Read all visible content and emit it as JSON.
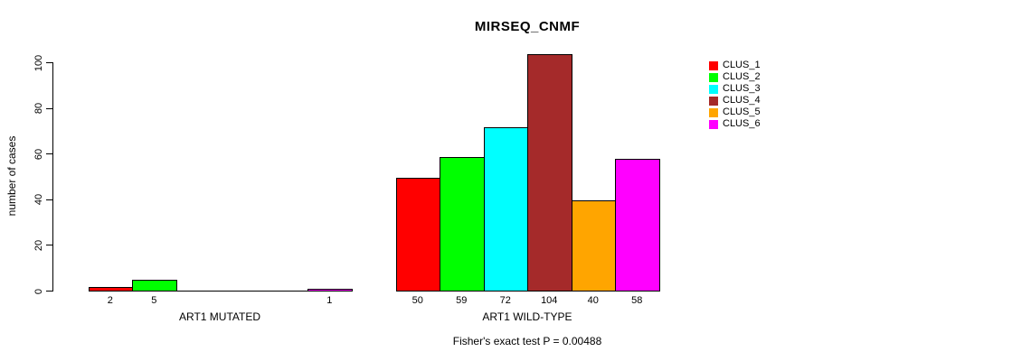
{
  "chart_data": {
    "type": "bar",
    "title": "MIRSEQ_CNMF",
    "ylabel": "number of cases",
    "xlabel": "",
    "ylim": [
      0,
      100
    ],
    "yticks": [
      0,
      20,
      40,
      60,
      80,
      100
    ],
    "grid": false,
    "legend_position": "right",
    "categories": [
      "ART1 MUTATED",
      "ART1 WILD-TYPE"
    ],
    "series": [
      {
        "name": "CLUS_1",
        "color": "#FF0000",
        "values": [
          2,
          50
        ]
      },
      {
        "name": "CLUS_2",
        "color": "#00FF00",
        "values": [
          5,
          59
        ]
      },
      {
        "name": "CLUS_3",
        "color": "#00FFFF",
        "values": [
          0,
          72
        ]
      },
      {
        "name": "CLUS_4",
        "color": "#A52A2A",
        "values": [
          0,
          104
        ]
      },
      {
        "name": "CLUS_5",
        "color": "#FFA500",
        "values": [
          0,
          40
        ]
      },
      {
        "name": "CLUS_6",
        "color": "#FF00FF",
        "values": [
          1,
          58
        ]
      }
    ],
    "bar_value_labels": [
      [
        "2",
        "5",
        "",
        "",
        "",
        "1"
      ],
      [
        "50",
        "59",
        "72",
        "104",
        "40",
        "58"
      ]
    ],
    "annotation": "Fisher's exact test P = 0.00488"
  }
}
